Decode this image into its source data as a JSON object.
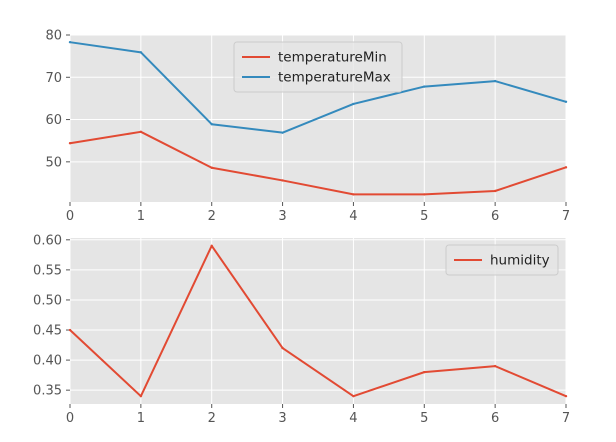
{
  "chart_data": [
    {
      "type": "line",
      "x": [
        0,
        1,
        2,
        3,
        4,
        5,
        6,
        7
      ],
      "x_ticks": [
        "0",
        "1",
        "2",
        "3",
        "4",
        "5",
        "6",
        "7"
      ],
      "xlim": [
        0,
        7
      ],
      "ylim": [
        40.5,
        80
      ],
      "y_ticks": [
        50,
        60,
        70,
        80
      ],
      "y_tick_labels": [
        "50",
        "60",
        "70",
        "80"
      ],
      "grid": true,
      "legend_position": "upper center",
      "series": [
        {
          "name": "temperatureMin",
          "color": "#E24A33",
          "values": [
            54.4,
            57.1,
            48.6,
            45.6,
            42.3,
            42.3,
            43.1,
            48.7
          ]
        },
        {
          "name": "temperatureMax",
          "color": "#348ABD",
          "values": [
            78.3,
            75.9,
            58.9,
            56.9,
            63.7,
            67.8,
            69.1,
            64.2
          ]
        }
      ]
    },
    {
      "type": "line",
      "x": [
        0,
        1,
        2,
        3,
        4,
        5,
        6,
        7
      ],
      "x_ticks": [
        "0",
        "1",
        "2",
        "3",
        "4",
        "5",
        "6",
        "7"
      ],
      "xlim": [
        0,
        7
      ],
      "ylim": [
        0.327,
        0.603
      ],
      "y_ticks": [
        0.35,
        0.4,
        0.45,
        0.5,
        0.55,
        0.6
      ],
      "y_tick_labels": [
        "0.35",
        "0.40",
        "0.45",
        "0.50",
        "0.55",
        "0.60"
      ],
      "grid": true,
      "legend_position": "upper right",
      "series": [
        {
          "name": "humidity",
          "color": "#E24A33",
          "values": [
            0.45,
            0.34,
            0.59,
            0.42,
            0.34,
            0.38,
            0.39,
            0.34
          ]
        }
      ]
    }
  ]
}
